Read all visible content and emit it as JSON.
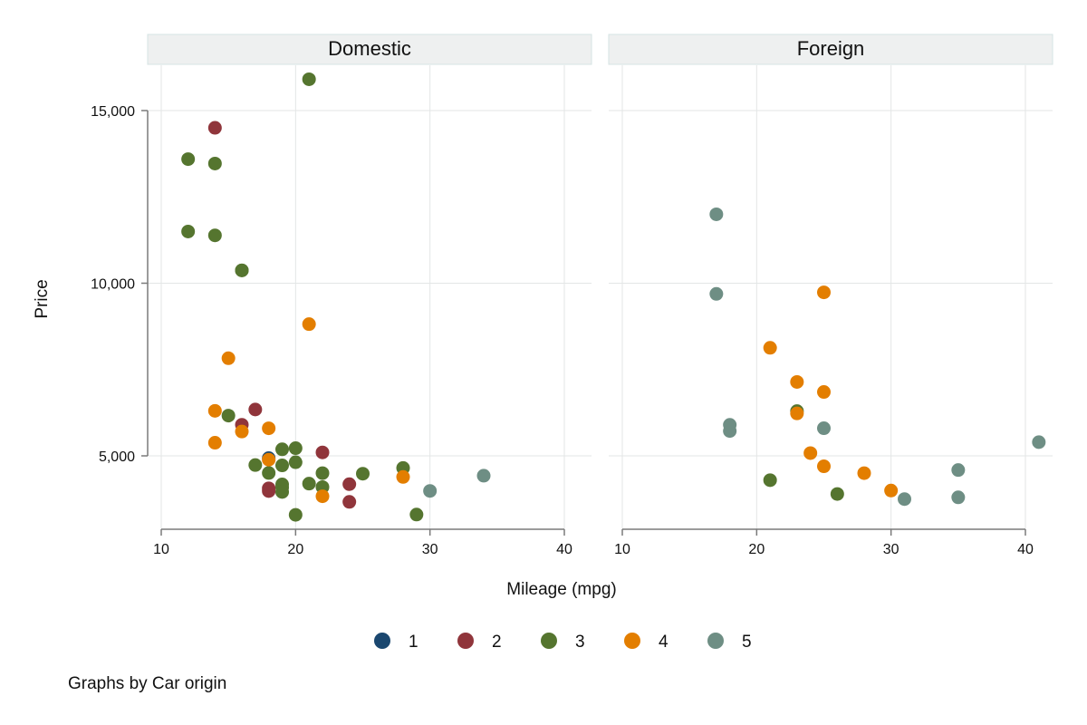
{
  "chart_data": {
    "type": "scatter",
    "title": "",
    "xlabel": "Mileage (mpg)",
    "ylabel": "Price",
    "xlim": [
      10,
      41
    ],
    "ylim": [
      3000,
      16300
    ],
    "xticks": [
      10,
      20,
      30,
      40
    ],
    "yticks": [
      5000,
      10000,
      15000
    ],
    "ytick_labels": [
      "5,000",
      "10,000",
      "15,000"
    ],
    "grid": true,
    "legend_position": "bottom",
    "note": "Graphs by Car origin",
    "panels": [
      {
        "name": "Domestic",
        "series": [
          {
            "name": "1",
            "color": "#1a476f",
            "points": [
              [
                18,
                4934
              ]
            ]
          },
          {
            "name": "2",
            "color": "#90353b",
            "points": [
              [
                14,
                14500
              ],
              [
                16,
                5900
              ],
              [
                17,
                6342
              ],
              [
                18,
                4060
              ],
              [
                18,
                3980
              ],
              [
                22,
                5100
              ],
              [
                24,
                4180
              ],
              [
                24,
                3667
              ]
            ]
          },
          {
            "name": "3",
            "color": "#55752f",
            "points": [
              [
                21,
                15906
              ],
              [
                12,
                13594
              ],
              [
                14,
                13466
              ],
              [
                12,
                11497
              ],
              [
                14,
                11385
              ],
              [
                16,
                10371
              ],
              [
                16,
                10372
              ],
              [
                15,
                6165
              ],
              [
                17,
                4733
              ],
              [
                18,
                4504
              ],
              [
                19,
                5189
              ],
              [
                19,
                4723
              ],
              [
                19,
                4172
              ],
              [
                19,
                4082
              ],
              [
                19,
                3955
              ],
              [
                20,
                5222
              ],
              [
                20,
                4816
              ],
              [
                20,
                3291
              ],
              [
                21,
                4195
              ],
              [
                22,
                4499
              ],
              [
                22,
                4096
              ],
              [
                25,
                4482
              ],
              [
                28,
                4648
              ],
              [
                29,
                3299
              ]
            ]
          },
          {
            "name": "4",
            "color": "#e37e00",
            "points": [
              [
                21,
                8814
              ],
              [
                15,
                7827
              ],
              [
                14,
                6303
              ],
              [
                14,
                5379
              ],
              [
                16,
                5705
              ],
              [
                18,
                5798
              ],
              [
                18,
                4890
              ],
              [
                22,
                3829
              ],
              [
                28,
                4389
              ]
            ]
          },
          {
            "name": "5",
            "color": "#6e8e84",
            "points": [
              [
                30,
                3984
              ],
              [
                34,
                4425
              ]
            ]
          }
        ]
      },
      {
        "name": "Foreign",
        "series": [
          {
            "name": "1",
            "color": "#1a476f",
            "points": []
          },
          {
            "name": "2",
            "color": "#90353b",
            "points": []
          },
          {
            "name": "3",
            "color": "#55752f",
            "points": [
              [
                21,
                4296
              ],
              [
                23,
                6295
              ],
              [
                26,
                3895
              ]
            ]
          },
          {
            "name": "4",
            "color": "#e37e00",
            "points": [
              [
                25,
                9735
              ],
              [
                21,
                8129
              ],
              [
                23,
                7140
              ],
              [
                25,
                6850
              ],
              [
                23,
                6229
              ],
              [
                24,
                5079
              ],
              [
                25,
                4697
              ],
              [
                28,
                4499
              ],
              [
                30,
                3995
              ]
            ]
          },
          {
            "name": "5",
            "color": "#6e8e84",
            "points": [
              [
                17,
                11995
              ],
              [
                17,
                9690
              ],
              [
                18,
                5899
              ],
              [
                18,
                5719
              ],
              [
                25,
                5799
              ],
              [
                41,
                5397
              ],
              [
                35,
                4589
              ],
              [
                35,
                3798
              ],
              [
                31,
                3748
              ]
            ]
          }
        ]
      }
    ]
  }
}
